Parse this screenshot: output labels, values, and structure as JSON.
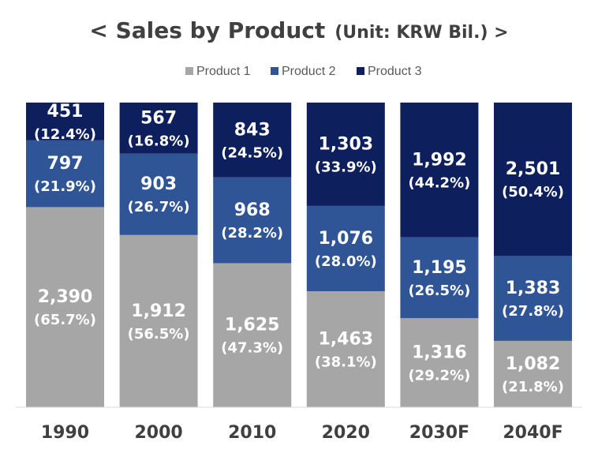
{
  "chart_data": {
    "type": "bar",
    "stacked": true,
    "title": "< Sales by Product",
    "unit": "(Unit: KRW Bil.) >",
    "categories": [
      "1990",
      "2000",
      "2010",
      "2020",
      "2030F",
      "2040F"
    ],
    "series": [
      {
        "name": "Product 1",
        "color": "#a6a6a6",
        "values": [
          2390,
          1912,
          1625,
          1463,
          1316,
          1082
        ],
        "value_labels": [
          "2,390",
          "1,912",
          "1,625",
          "1,463",
          "1,316",
          "1,082"
        ],
        "share_labels": [
          "(65.7%)",
          "(56.5%)",
          "(47.3%)",
          "(38.1%)",
          "(29.2%)",
          "(21.8%)"
        ]
      },
      {
        "name": "Product 2",
        "color": "#2f5597",
        "values": [
          797,
          903,
          968,
          1076,
          1195,
          1383
        ],
        "value_labels": [
          "797",
          "903",
          "968",
          "1,076",
          "1,195",
          "1,383"
        ],
        "share_labels": [
          "(21.9%)",
          "(26.7%)",
          "(28.2%)",
          "(28.0%)",
          "(26.5%)",
          "(27.8%)"
        ]
      },
      {
        "name": "Product 3",
        "color": "#0d1f5c",
        "values": [
          451,
          567,
          843,
          1303,
          1992,
          2501
        ],
        "value_labels": [
          "451",
          "567",
          "843",
          "1,303",
          "1,992",
          "2,501"
        ],
        "share_labels": [
          "(12.4%)",
          "(16.8%)",
          "(24.5%)",
          "(33.9%)",
          "(44.2%)",
          "(50.4%)"
        ]
      }
    ],
    "legend_position": "top-center",
    "normalized_to_100_percent": true,
    "grid": false
  }
}
